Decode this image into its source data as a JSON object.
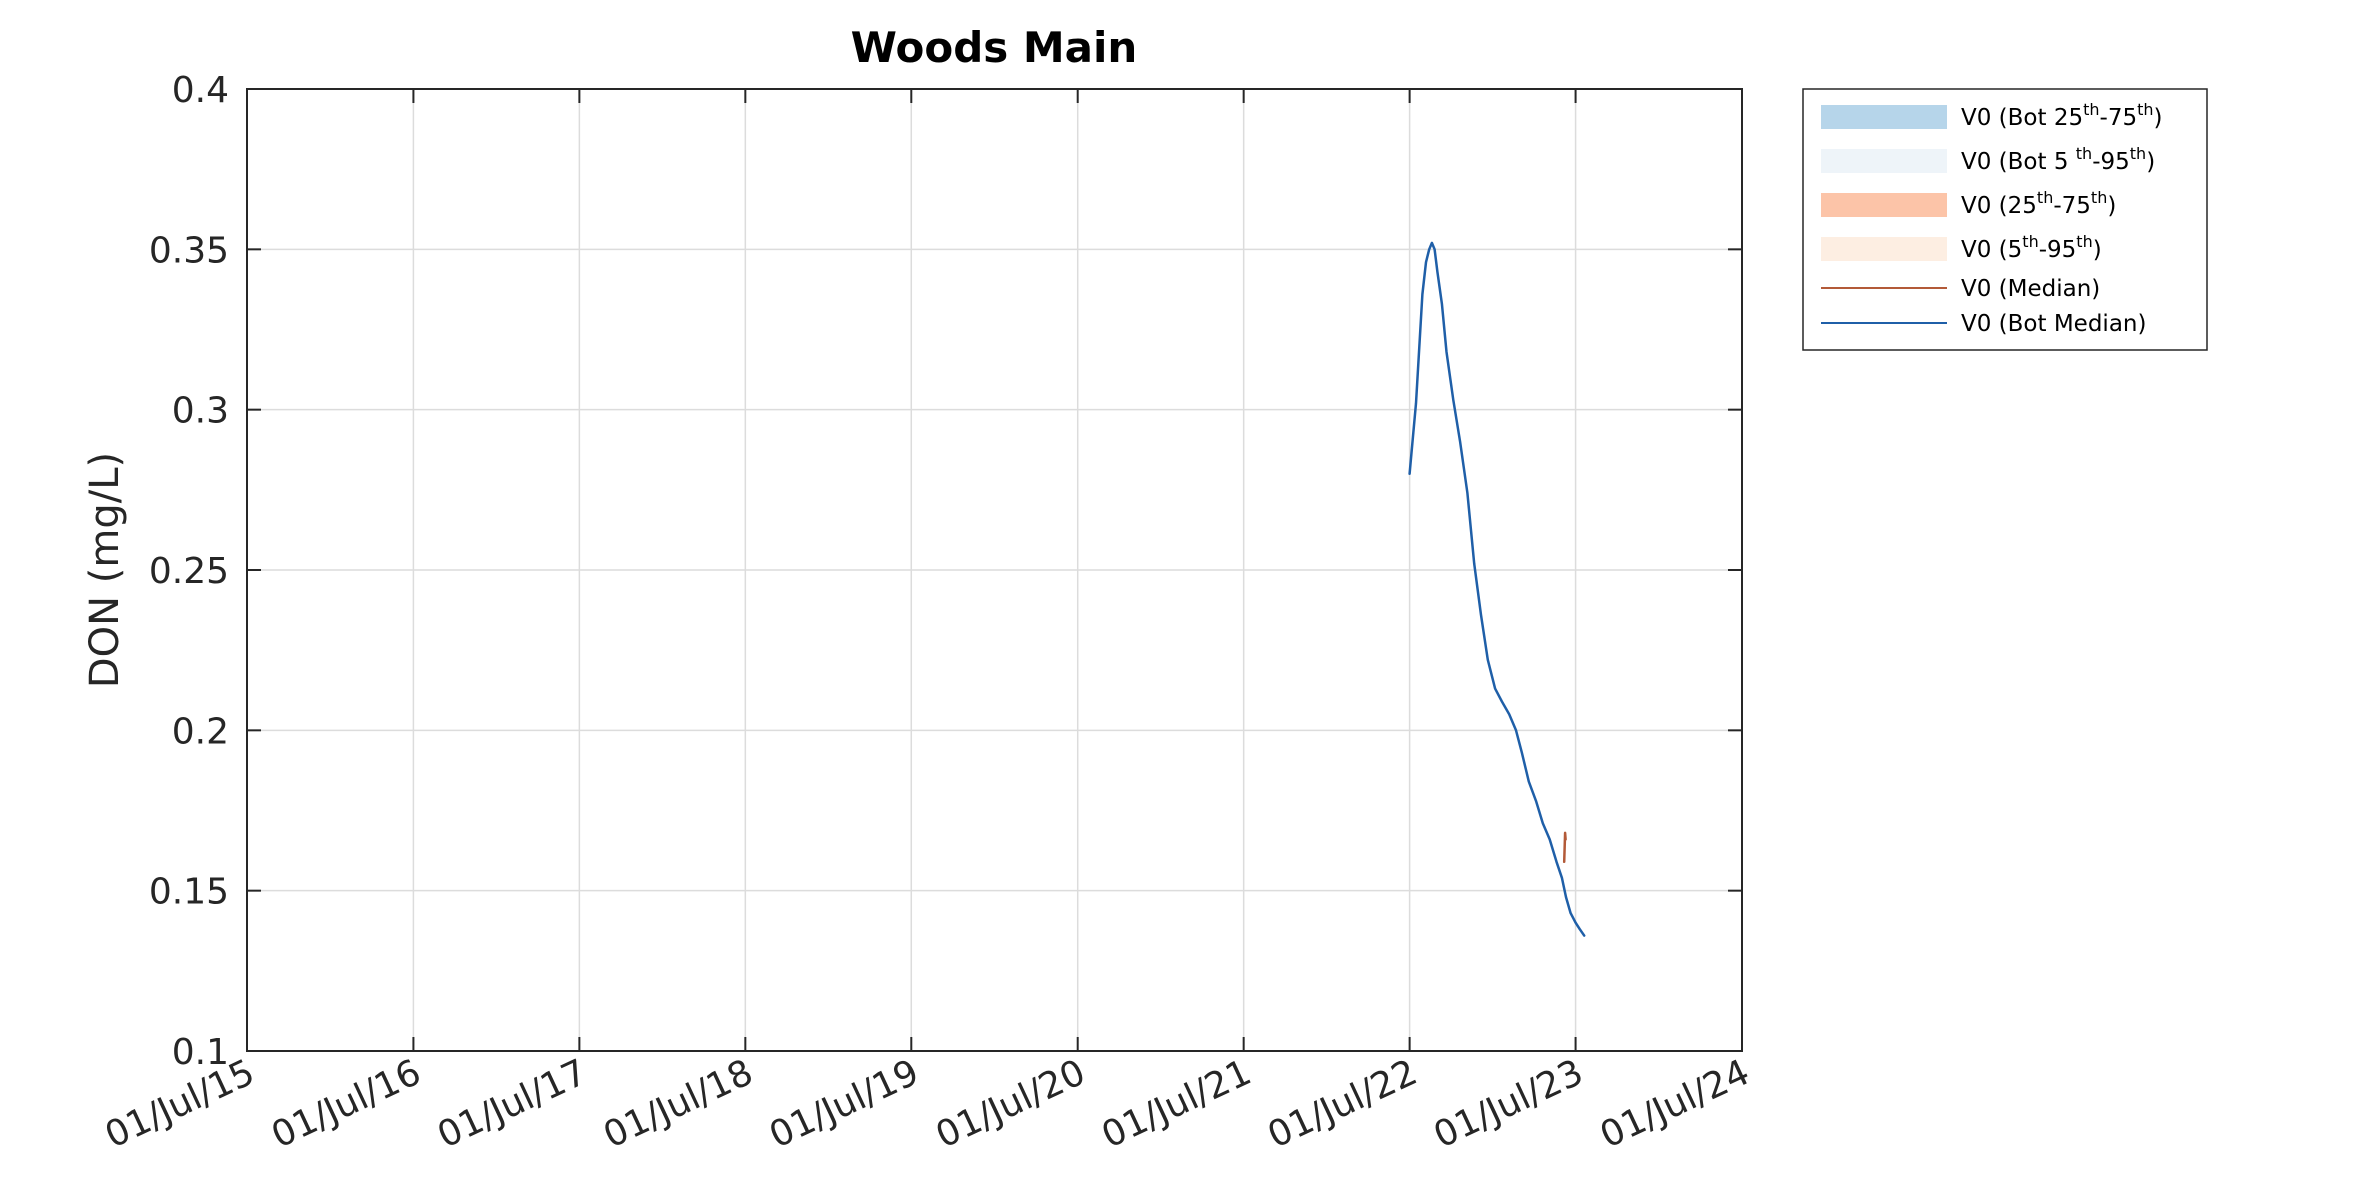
{
  "chart_data": {
    "type": "line",
    "title": "Woods Main",
    "xlabel": "",
    "ylabel": "DON (mg/L)",
    "ylim": [
      0.1,
      0.4
    ],
    "yticks": [
      0.1,
      0.15,
      0.2,
      0.25,
      0.3,
      0.35,
      0.4
    ],
    "ytick_labels": [
      "0.1",
      "0.15",
      "0.2",
      "0.25",
      "0.3",
      "0.35",
      "0.4"
    ],
    "xlim": [
      "2015-07-01",
      "2024-07-01"
    ],
    "xticks": [
      "2015-07-01",
      "2016-07-01",
      "2017-07-01",
      "2018-07-01",
      "2019-07-01",
      "2020-07-01",
      "2021-07-01",
      "2022-07-01",
      "2023-07-01",
      "2024-07-01"
    ],
    "xtick_labels": [
      "01/Jul/15",
      "01/Jul/16",
      "01/Jul/17",
      "01/Jul/18",
      "01/Jul/19",
      "01/Jul/20",
      "01/Jul/21",
      "01/Jul/22",
      "01/Jul/23",
      "01/Jul/24"
    ],
    "grid": true,
    "legend_position": "outside-top-right",
    "legend": [
      {
        "base": "V0 (Bot 25",
        "sup1": "th",
        "mid": "-75",
        "sup2": "th",
        "end": ")",
        "kind": "patch",
        "color": "#b6d5ea"
      },
      {
        "base": "V0 (Bot 5 ",
        "sup1": "th",
        "mid": "-95",
        "sup2": "th",
        "end": ")",
        "kind": "patch",
        "color": "#eef4f9"
      },
      {
        "base": "V0 (25",
        "sup1": "th",
        "mid": "-75",
        "sup2": "th",
        "end": ")",
        "kind": "patch",
        "color": "#fcc4a8"
      },
      {
        "base": "V0 (5",
        "sup1": "th",
        "mid": "-95",
        "sup2": "th",
        "end": ")",
        "kind": "patch",
        "color": "#fdeee2"
      },
      {
        "base": "V0 (Median)",
        "sup1": "",
        "mid": "",
        "sup2": "",
        "end": "",
        "kind": "line",
        "color": "#b35a38"
      },
      {
        "base": "V0 (Bot Median)",
        "sup1": "",
        "mid": "",
        "sup2": "",
        "end": "",
        "kind": "line",
        "color": "#1f5fa8"
      }
    ],
    "series": [
      {
        "name": "V0 (Median)",
        "color": "#b35a38",
        "x": [
          "2023-06-06",
          "2023-06-07",
          "2023-06-08",
          "2023-06-09"
        ],
        "y": [
          0.159,
          0.164,
          0.168,
          0.166
        ]
      },
      {
        "name": "V0 (Bot Median)",
        "color": "#1f5fa8",
        "x": [
          "2022-07-01",
          "2022-07-15",
          "2022-07-29",
          "2022-08-06",
          "2022-08-13",
          "2022-08-19",
          "2022-08-25",
          "2022-08-31",
          "2022-09-10",
          "2022-09-20",
          "2022-10-05",
          "2022-10-20",
          "2022-11-05",
          "2022-11-20",
          "2022-12-05",
          "2022-12-20",
          "2023-01-05",
          "2023-01-20",
          "2023-02-05",
          "2023-02-20",
          "2023-03-05",
          "2023-03-20",
          "2023-04-05",
          "2023-04-20",
          "2023-05-05",
          "2023-05-20",
          "2023-06-01",
          "2023-06-10",
          "2023-06-20",
          "2023-07-01",
          "2023-07-10",
          "2023-07-20"
        ],
        "y": [
          0.28,
          0.302,
          0.336,
          0.346,
          0.35,
          0.352,
          0.35,
          0.343,
          0.333,
          0.318,
          0.303,
          0.29,
          0.274,
          0.252,
          0.236,
          0.222,
          0.213,
          0.209,
          0.205,
          0.2,
          0.193,
          0.184,
          0.178,
          0.171,
          0.166,
          0.159,
          0.154,
          0.148,
          0.143,
          0.14,
          0.138,
          0.136
        ]
      }
    ]
  }
}
